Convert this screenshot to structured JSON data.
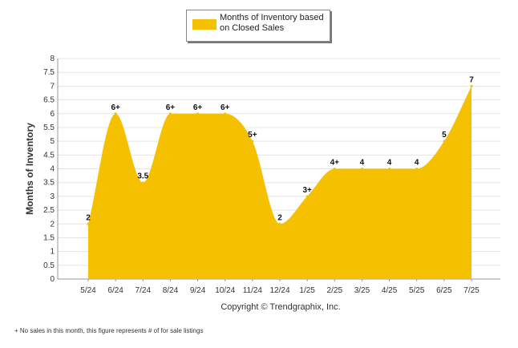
{
  "chart_data": {
    "type": "area",
    "ylabel": "Months of Inventory",
    "xlabel": "",
    "ylim": [
      0,
      8
    ],
    "ystep": 0.5,
    "grid": true,
    "legend_position": "top-center",
    "color": "#f5c000",
    "categories": [
      "5/24",
      "6/24",
      "7/24",
      "8/24",
      "9/24",
      "10/24",
      "11/24",
      "12/24",
      "1/25",
      "2/25",
      "3/25",
      "4/25",
      "5/25",
      "6/25",
      "7/25"
    ],
    "series": [
      {
        "name": "Months of Inventory based on Closed Sales",
        "values": [
          2,
          6,
          3.5,
          6,
          6,
          6,
          5,
          2,
          3,
          4,
          4,
          4,
          4,
          5,
          7
        ],
        "labels": [
          "2",
          "6+",
          "3.5",
          "6+",
          "6+",
          "6+",
          "5+",
          "2",
          "3+",
          "4+",
          "4",
          "4",
          "4",
          "5",
          "7"
        ]
      }
    ],
    "copyright": "Copyright © Trendgraphix, Inc.",
    "footnote": "+  No sales in this month, this figure represents # of for sale listings"
  }
}
